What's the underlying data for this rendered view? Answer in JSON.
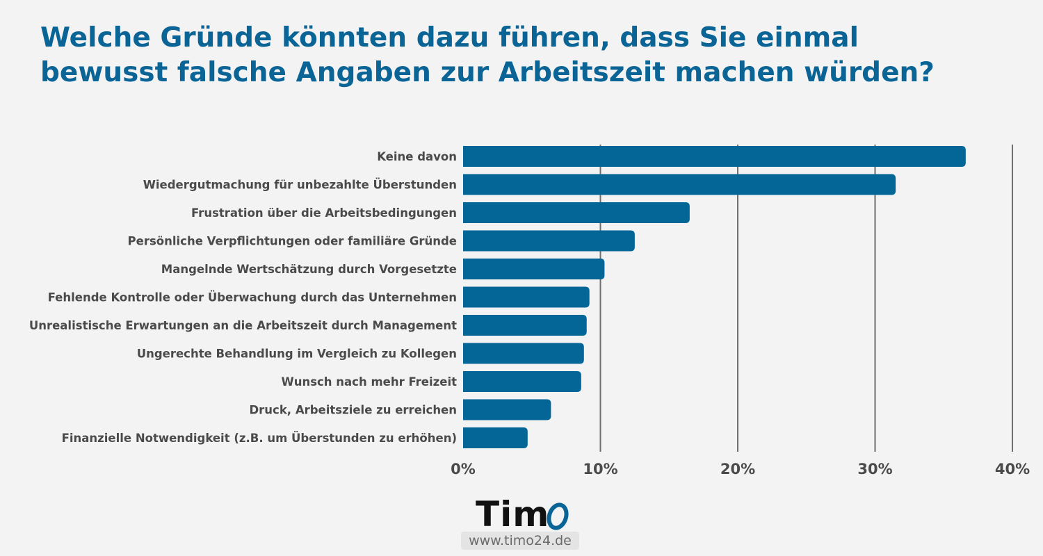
{
  "title": {
    "line1": "Welche Gründe könnten dazu führen, dass Sie einmal",
    "line2": "bewusst falsche Angaben zur Arbeitszeit machen würden?"
  },
  "colors": {
    "bar": "#046597",
    "title": "#0a6496",
    "label": "#4a4a4a",
    "grid": "#6f6f6f",
    "background": "#f3f3f3"
  },
  "chart_data": {
    "type": "bar",
    "orientation": "horizontal",
    "categories": [
      "Keine davon",
      "Wiedergutmachung für unbezahlte Überstunden",
      "Frustration über die Arbeitsbedingungen",
      "Persönliche Verpflichtungen oder familiäre Gründe",
      "Mangelnde Wertschätzung durch Vorgesetzte",
      "Fehlende Kontrolle oder Überwachung durch das Unternehmen",
      "Unrealistische Erwartungen an die Arbeitszeit durch Management",
      "Ungerechte Behandlung im Vergleich zu Kollegen",
      "Wunsch nach mehr Freizeit",
      "Druck, Arbeitsziele zu erreichen",
      "Finanzielle Notwendigkeit (z.B. um Überstunden zu erhöhen)"
    ],
    "values": [
      36.6,
      31.5,
      16.5,
      12.5,
      10.3,
      9.2,
      9.0,
      8.8,
      8.6,
      6.4,
      4.7
    ],
    "xlim": [
      0,
      40
    ],
    "xticks": [
      0,
      10,
      20,
      30,
      40
    ],
    "xtick_labels": [
      "0%",
      "10%",
      "20%",
      "30%",
      "40%"
    ],
    "grid": true,
    "legend": "none"
  },
  "logo": {
    "text": "Tim",
    "url": "www.timo24.de"
  }
}
